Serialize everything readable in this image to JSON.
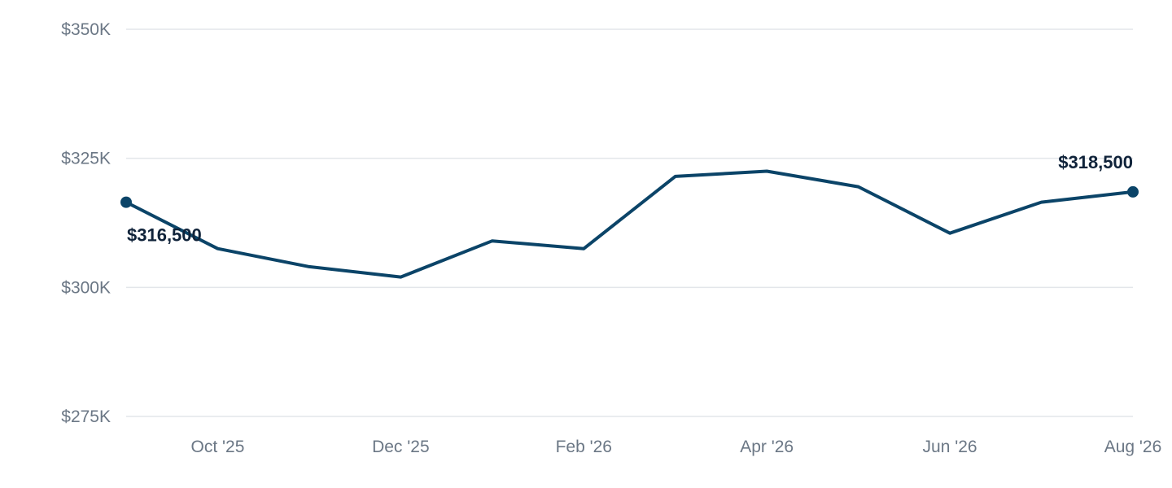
{
  "chart_data": {
    "type": "line",
    "title": "",
    "xlabel": "",
    "ylabel": "",
    "x": [
      "2025-09",
      "2025-10",
      "2025-11",
      "2025-12",
      "2026-01",
      "2026-02",
      "2026-03",
      "2026-04",
      "2026-05",
      "2026-06",
      "2026-07",
      "2026-08"
    ],
    "series": [
      {
        "values": [
          316500,
          307500,
          304000,
          302000,
          309000,
          307500,
          321500,
          322500,
          319500,
          310500,
          316500,
          318500
        ]
      }
    ],
    "ylim": [
      275000,
      350000
    ],
    "yticks": [
      {
        "value": 275000,
        "label": "$275K"
      },
      {
        "value": 300000,
        "label": "$300K"
      },
      {
        "value": 325000,
        "label": "$325K"
      },
      {
        "value": 350000,
        "label": "$350K"
      }
    ],
    "xticks": [
      {
        "x": "2025-10",
        "label": "Oct '25"
      },
      {
        "x": "2025-12",
        "label": "Dec '25"
      },
      {
        "x": "2026-02",
        "label": "Feb '26"
      },
      {
        "x": "2026-04",
        "label": "Apr '26"
      },
      {
        "x": "2026-06",
        "label": "Jun '26"
      },
      {
        "x": "2026-08",
        "label": "Aug '26"
      }
    ],
    "data_labels": [
      {
        "x": "2025-09",
        "text": "$316,500"
      },
      {
        "x": "2026-08",
        "text": "$318,500"
      }
    ],
    "grid": true,
    "legend": "none",
    "colors": {
      "line": "#0b4468",
      "grid": "#e3e6ea",
      "tick_text": "#6b7785",
      "label_text": "#10233a"
    }
  }
}
